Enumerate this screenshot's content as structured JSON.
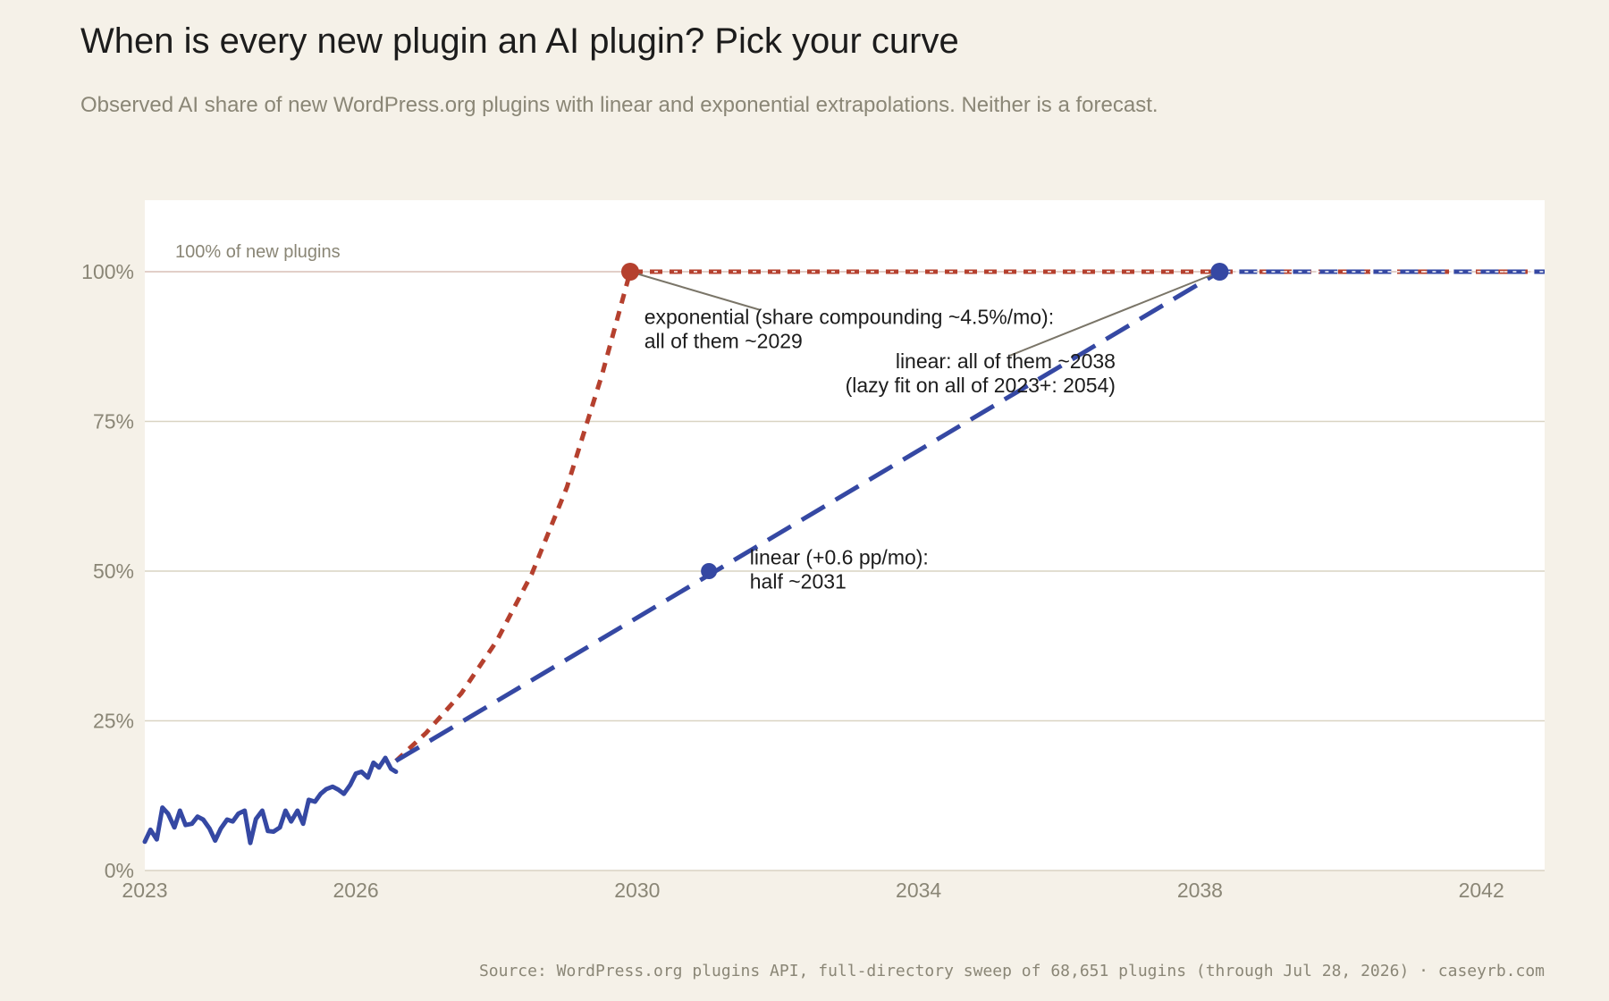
{
  "title": "When is every new plugin an AI plugin? Pick your curve",
  "subtitle": "Observed AI share of new WordPress.org plugins with linear and exponential extrapolations. Neither is a forecast.",
  "source": "Source: WordPress.org plugins API, full-directory sweep of 68,651 plugins (through Jul 28, 2026) · caseyrb.com",
  "colors": {
    "background": "#f5f1e8",
    "plot_bg": "#ffffff",
    "observed": "#3548a3",
    "linear": "#3548a3",
    "exponential": "#b5402e",
    "grid": "#d9d3c2",
    "muted_text": "#8a8676"
  },
  "chart_data": {
    "type": "line",
    "xlim": [
      2023.0,
      2042.9
    ],
    "ylim": [
      0,
      100
    ],
    "x_ticks": [
      {
        "value": 2023,
        "label": "2023"
      },
      {
        "value": 2026,
        "label": "2026"
      },
      {
        "value": 2030,
        "label": "2030"
      },
      {
        "value": 2034,
        "label": "2034"
      },
      {
        "value": 2038,
        "label": "2038"
      },
      {
        "value": 2042,
        "label": "2042"
      }
    ],
    "y_ticks": [
      {
        "value": 0,
        "label": "0%"
      },
      {
        "value": 25,
        "label": "25%"
      },
      {
        "value": 50,
        "label": "50%"
      },
      {
        "value": 75,
        "label": "75%"
      },
      {
        "value": 100,
        "label": "100%"
      }
    ],
    "grid": true,
    "reference_line": {
      "y": 100,
      "label": "100% of new plugins"
    },
    "series": [
      {
        "id": "observed",
        "style": "solid",
        "x": [
          2023.0,
          2023.08,
          2023.17,
          2023.25,
          2023.33,
          2023.42,
          2023.5,
          2023.58,
          2023.67,
          2023.75,
          2023.83,
          2023.92,
          2024.0,
          2024.08,
          2024.17,
          2024.25,
          2024.33,
          2024.42,
          2024.5,
          2024.58,
          2024.67,
          2024.75,
          2024.83,
          2024.92,
          2025.0,
          2025.08,
          2025.17,
          2025.25,
          2025.33,
          2025.42,
          2025.5,
          2025.58,
          2025.67,
          2025.75,
          2025.83,
          2025.92,
          2026.0,
          2026.08,
          2026.17,
          2026.25,
          2026.33,
          2026.42,
          2026.5,
          2026.57
        ],
        "y": [
          4.8,
          6.8,
          5.2,
          10.5,
          9.5,
          7.2,
          10.0,
          7.6,
          7.8,
          9.0,
          8.5,
          7.0,
          5.0,
          7.0,
          8.5,
          8.2,
          9.5,
          10.0,
          4.6,
          8.6,
          10.0,
          6.6,
          6.5,
          7.2,
          10.0,
          8.2,
          10.0,
          7.8,
          11.8,
          11.5,
          12.8,
          13.6,
          14.0,
          13.5,
          12.8,
          14.3,
          16.2,
          16.5,
          15.5,
          18.0,
          17.2,
          18.8,
          17.0,
          16.5
        ]
      },
      {
        "id": "linear",
        "style": "dashed",
        "x": [
          2026.57,
          2038.28
        ],
        "y": [
          18.3,
          100
        ]
      },
      {
        "id": "exponential",
        "style": "dotted",
        "x": [
          2026.57,
          2027.0,
          2027.5,
          2028.0,
          2028.5,
          2029.0,
          2029.5,
          2029.9
        ],
        "y": [
          18.3,
          23.0,
          29.6,
          38.3,
          49.5,
          64.0,
          82.8,
          100
        ]
      },
      {
        "id": "linear-cap",
        "style": "dashed",
        "x": [
          2038.28,
          2042.9
        ],
        "y": [
          100,
          100
        ]
      },
      {
        "id": "exponential-cap",
        "style": "dashed",
        "x": [
          2029.9,
          2042.9
        ],
        "y": [
          100,
          100
        ]
      }
    ],
    "markers": [
      {
        "id": "exp-all",
        "x": 2029.9,
        "y": 100,
        "color": "exponential"
      },
      {
        "id": "lin-all",
        "x": 2038.28,
        "y": 100,
        "color": "linear"
      },
      {
        "id": "lin-half",
        "x": 2031.02,
        "y": 50,
        "color": "linear"
      }
    ],
    "annotations": [
      {
        "id": "exponential-note",
        "lines": [
          "exponential (share compounding ~4.5%/mo):",
          "all of them ~2029"
        ],
        "anchor": "start",
        "x": 2030.1,
        "y": 91.3
      },
      {
        "id": "linear-all-note",
        "lines": [
          "linear: all of them ~2038",
          "(lazy fit on all of 2023+: 2054)"
        ],
        "anchor": "end",
        "x": 2036.8,
        "y": 83.9
      },
      {
        "id": "linear-half-note",
        "lines": [
          "linear (+0.6 pp/mo):",
          "half ~2031"
        ],
        "anchor": "start",
        "x": 2031.6,
        "y": 51.1
      }
    ],
    "leaders": [
      {
        "x1": 2029.9,
        "y1": 100,
        "x2": 2031.75,
        "y2": 93.6
      },
      {
        "x1": 2038.28,
        "y1": 100,
        "x2": 2035.3,
        "y2": 86.0
      }
    ]
  }
}
